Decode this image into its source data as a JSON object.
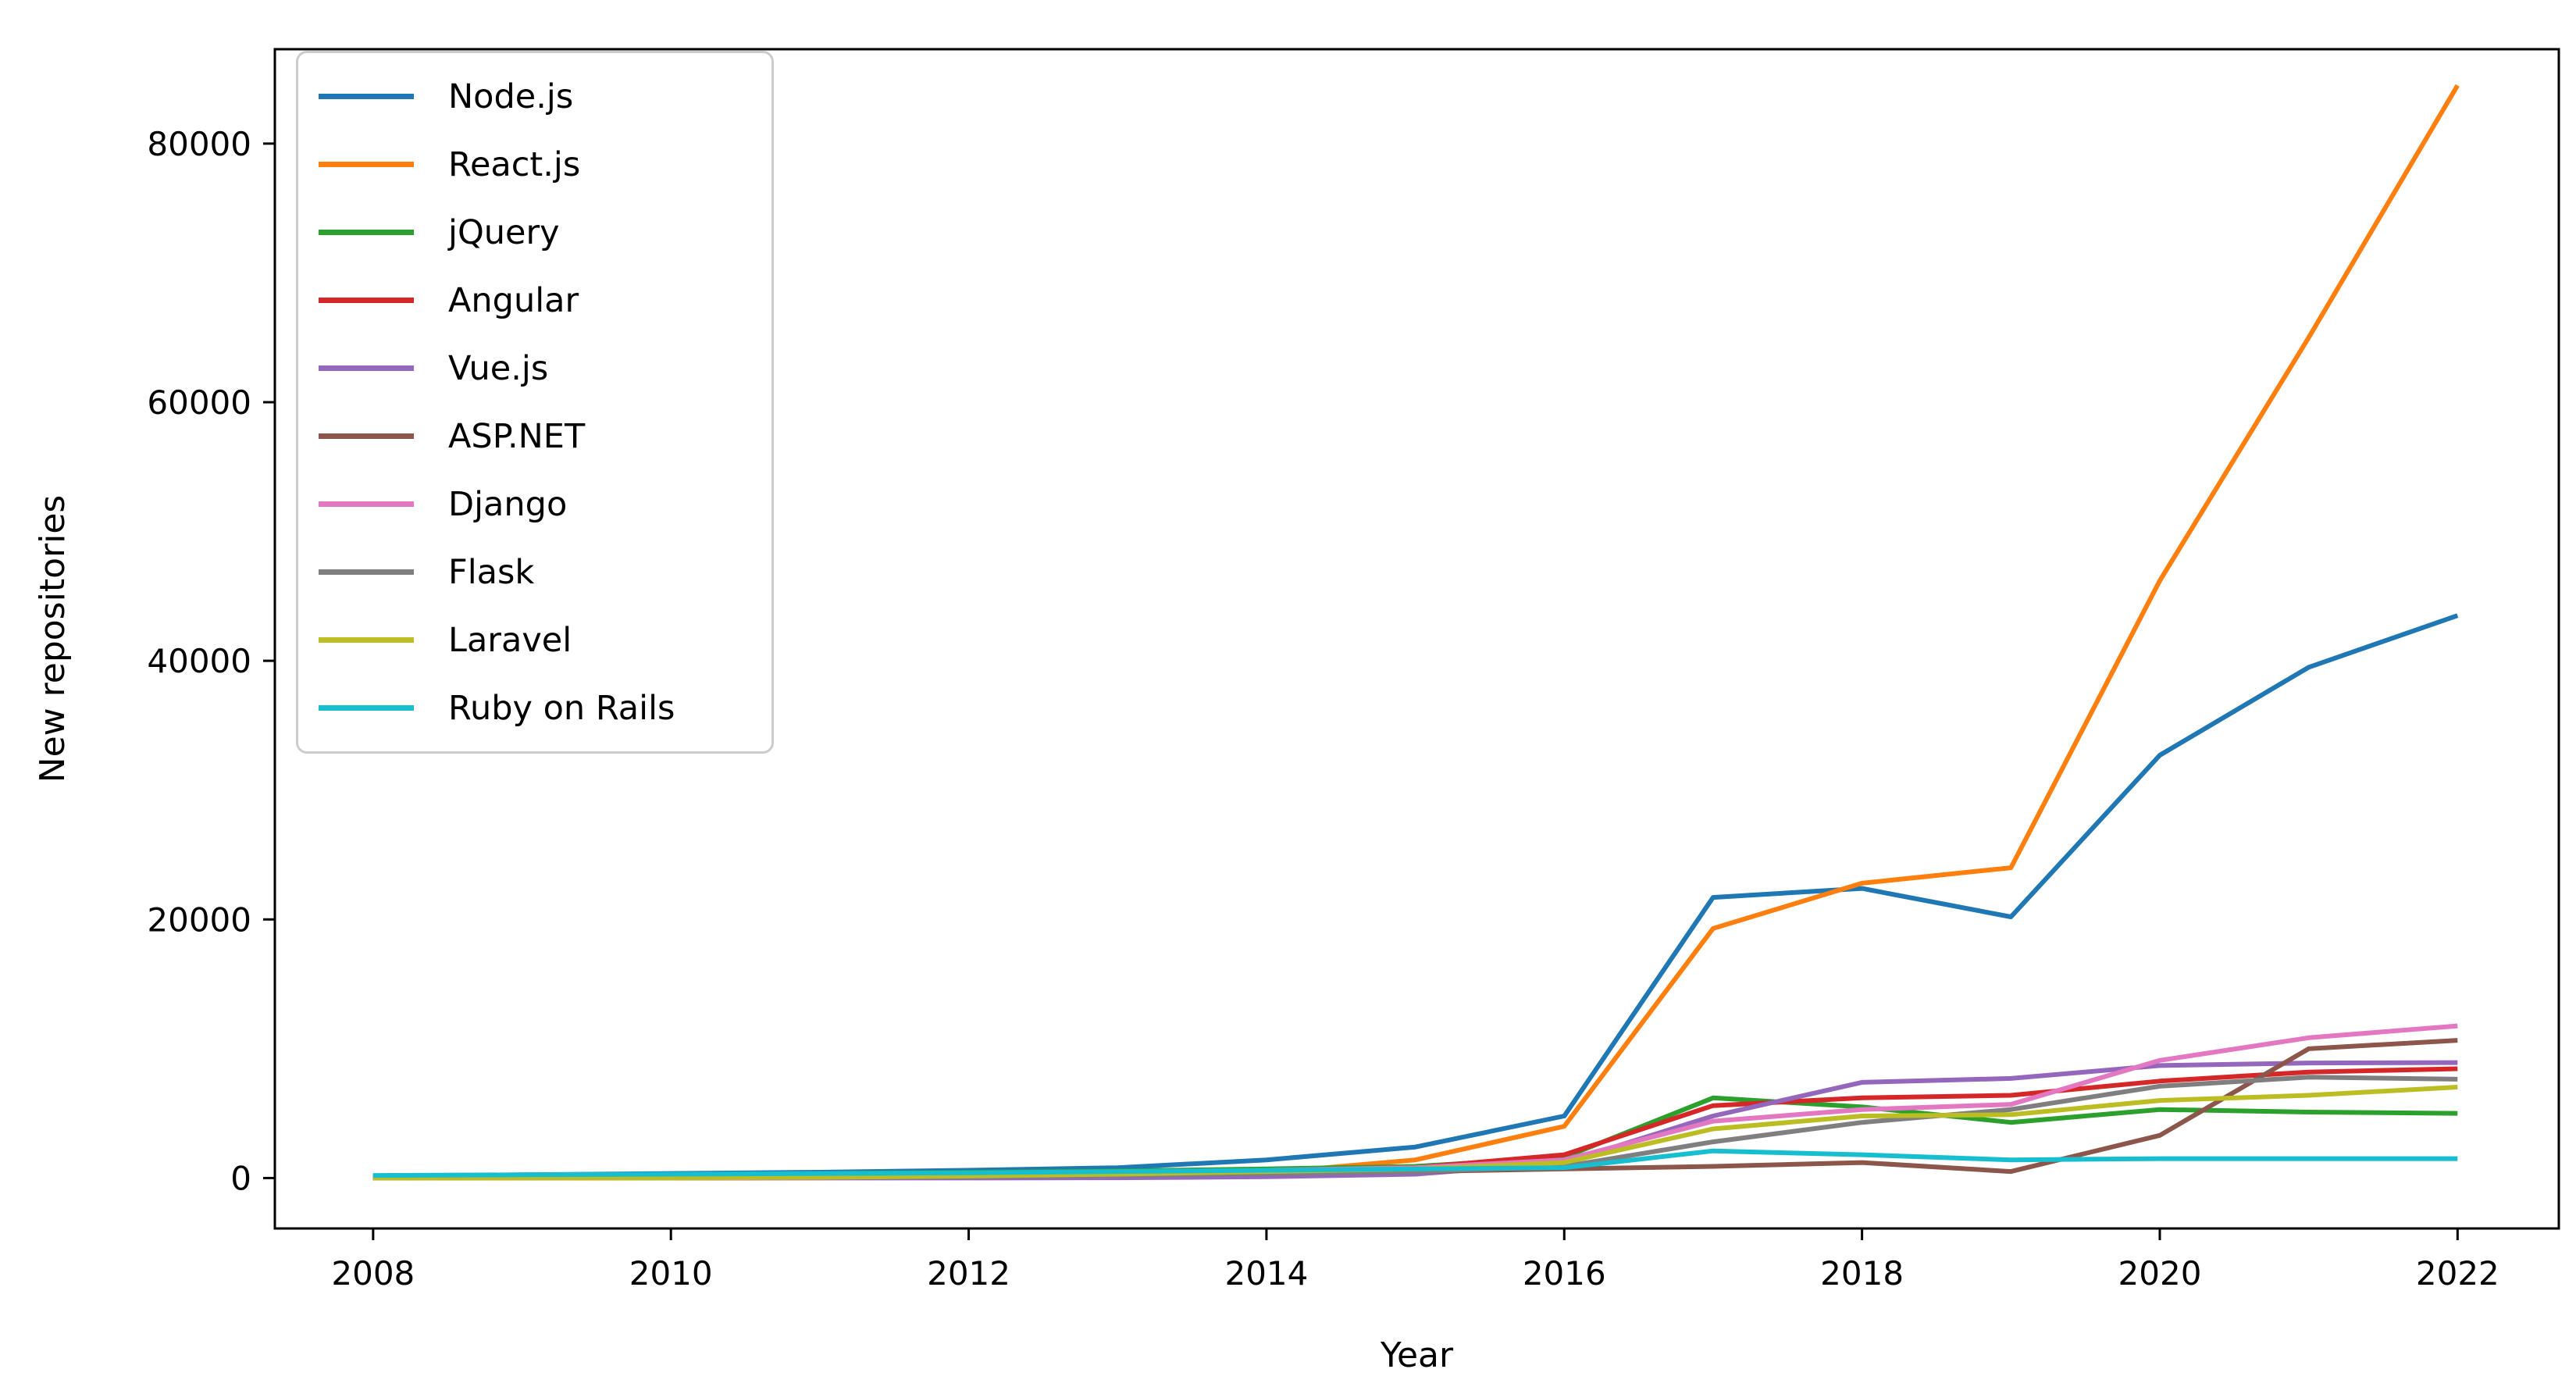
{
  "chart_data": {
    "type": "line",
    "title": "",
    "xlabel": "Year",
    "ylabel": "New repositories",
    "grid": false,
    "legend_position": "upper left",
    "xlim": [
      2007.34,
      2022.68
    ],
    "ylim": [
      -3900,
      87300
    ],
    "x_ticks": [
      2008,
      2010,
      2012,
      2014,
      2016,
      2018,
      2020,
      2022
    ],
    "x_tick_labels": [
      "2008",
      "2010",
      "2012",
      "2014",
      "2016",
      "2018",
      "2020",
      "2022"
    ],
    "y_ticks": [
      0,
      20000,
      40000,
      60000,
      80000
    ],
    "y_tick_labels": [
      "0",
      "20000",
      "40000",
      "60000",
      "80000"
    ],
    "x": [
      2008,
      2009,
      2010,
      2011,
      2012,
      2013,
      2014,
      2015,
      2016,
      2017,
      2018,
      2019,
      2020,
      2021,
      2022
    ],
    "series": [
      {
        "name": "Node.js",
        "color": "#1f77b4",
        "values": [
          150,
          250,
          350,
          450,
          600,
          800,
          1400,
          2400,
          4800,
          21700,
          22400,
          20200,
          32700,
          39500,
          43500
        ]
      },
      {
        "name": "React.js",
        "color": "#ff7f0e",
        "values": [
          0,
          0,
          10,
          20,
          50,
          150,
          400,
          1400,
          4000,
          19300,
          22800,
          24000,
          46200,
          65000,
          84500
        ]
      },
      {
        "name": "jQuery",
        "color": "#2ca02c",
        "values": [
          100,
          150,
          250,
          350,
          450,
          550,
          700,
          900,
          1600,
          6200,
          5500,
          4300,
          5300,
          5100,
          5000
        ]
      },
      {
        "name": "Angular",
        "color": "#d62728",
        "values": [
          0,
          0,
          10,
          30,
          80,
          200,
          500,
          800,
          1800,
          5600,
          6200,
          6400,
          7500,
          8200,
          8450
        ]
      },
      {
        "name": "Vue.js",
        "color": "#9467bd",
        "values": [
          0,
          0,
          0,
          0,
          0,
          20,
          100,
          300,
          1200,
          4800,
          7400,
          7700,
          8700,
          8900,
          8930
        ]
      },
      {
        "name": "ASP.NET",
        "color": "#8c564b",
        "values": [
          50,
          80,
          100,
          150,
          200,
          250,
          350,
          500,
          700,
          900,
          1200,
          500,
          3300,
          10000,
          10650
        ]
      },
      {
        "name": "Django",
        "color": "#e377c2",
        "values": [
          100,
          150,
          200,
          250,
          350,
          450,
          600,
          800,
          1400,
          4400,
          5300,
          5700,
          9100,
          10850,
          11770
        ]
      },
      {
        "name": "Flask",
        "color": "#7f7f7f",
        "values": [
          0,
          0,
          20,
          50,
          100,
          200,
          350,
          500,
          900,
          2800,
          4300,
          5300,
          7100,
          7800,
          7640
        ]
      },
      {
        "name": "Laravel",
        "color": "#bcbd22",
        "values": [
          0,
          0,
          0,
          50,
          150,
          300,
          500,
          700,
          1200,
          3800,
          4800,
          4900,
          6000,
          6400,
          7030
        ]
      },
      {
        "name": "Ruby on Rails",
        "color": "#17becf",
        "values": [
          200,
          250,
          300,
          350,
          400,
          500,
          600,
          700,
          800,
          2100,
          1800,
          1400,
          1500,
          1500,
          1500
        ]
      }
    ]
  }
}
